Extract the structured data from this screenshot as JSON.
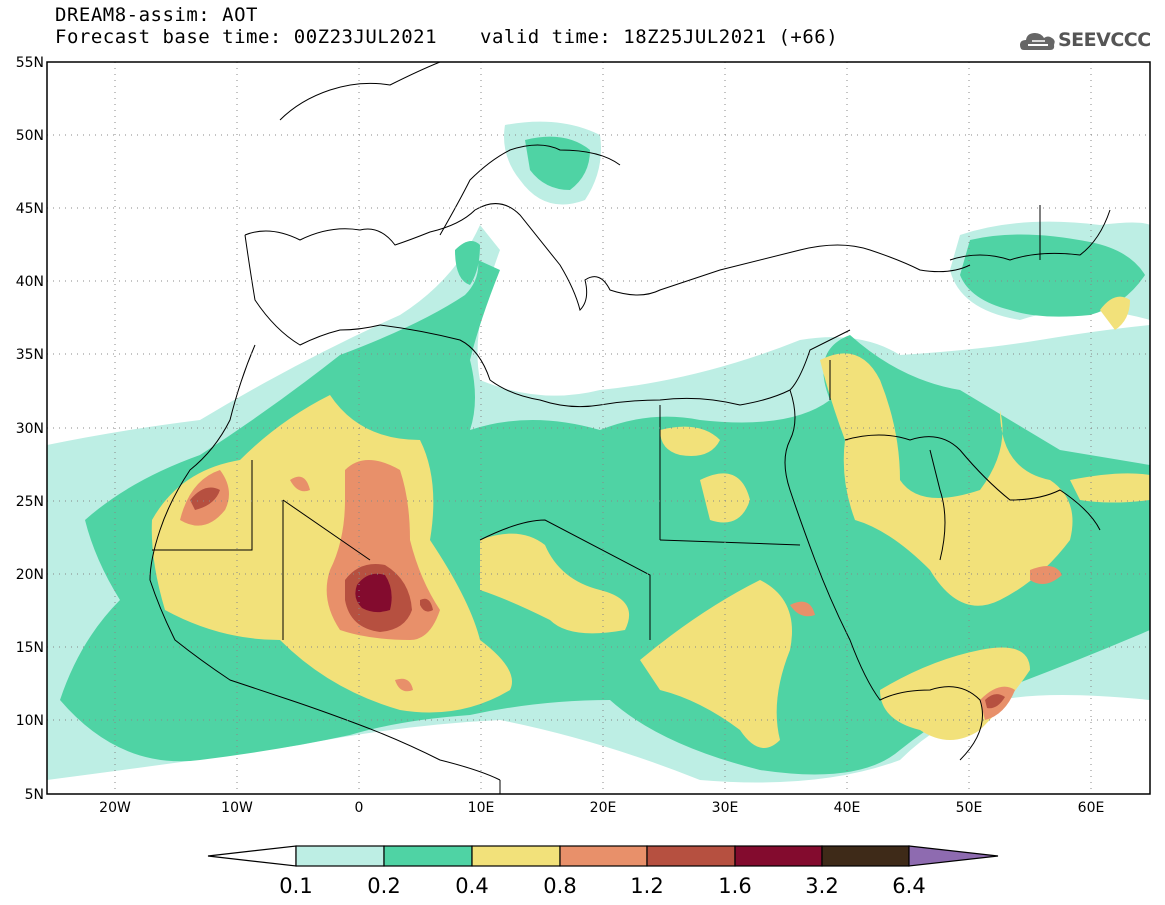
{
  "header": {
    "title": "DREAM8-assim: AOT",
    "base_time": "Forecast base time: 00Z23JUL2021",
    "valid_time": "valid time: 18Z25JUL2021 (+66)"
  },
  "logo": {
    "text": "SEEVCCC",
    "icon": "cloud-icon"
  },
  "map": {
    "lat_labels": [
      "55N",
      "50N",
      "45N",
      "40N",
      "35N",
      "30N",
      "25N",
      "20N",
      "15N",
      "10N",
      "5N"
    ],
    "lon_labels": [
      "20W",
      "10W",
      "0",
      "10E",
      "20E",
      "30E",
      "40E",
      "50E",
      "60E"
    ]
  },
  "colorbar": {
    "labels": [
      "0.1",
      "0.2",
      "0.4",
      "0.8",
      "1.2",
      "1.6",
      "3.2",
      "6.4"
    ],
    "colors": [
      "#ffffff",
      "#bdeee4",
      "#4fd3a4",
      "#f2e17a",
      "#e8906a",
      "#b65040",
      "#830b2e",
      "#3e2a18",
      "#8e6bb0"
    ]
  }
}
